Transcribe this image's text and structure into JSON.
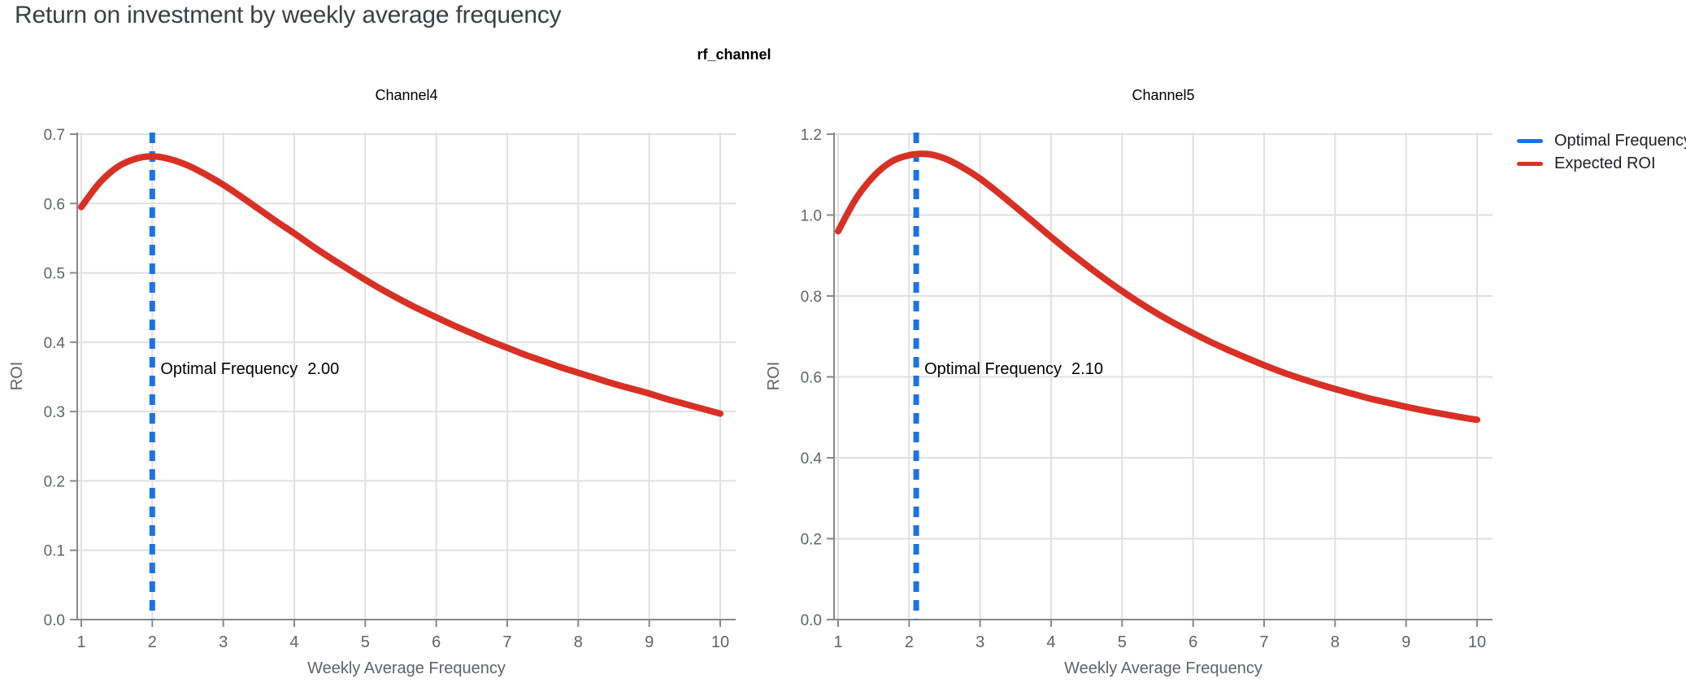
{
  "header": {
    "title": "Return on investment by weekly average frequency",
    "facet_title": "rf_channel"
  },
  "legend": {
    "items": [
      {
        "label": "Optimal Frequency",
        "color": "#1a73e8"
      },
      {
        "label": "Expected ROI",
        "color": "#d93025"
      }
    ]
  },
  "colors": {
    "expected_roi": "#d93025",
    "optimal_frequency": "#1a73e8",
    "grid": "#e0e0e0",
    "axis": "#888888",
    "tick_label": "#5f6368",
    "annotation": "#000000",
    "title": "#3c4043"
  },
  "chart_data": [
    {
      "type": "line",
      "title": "Channel4",
      "xlabel": "Weekly Average Frequency",
      "ylabel": "ROI",
      "xlim": [
        1,
        10
      ],
      "ylim": [
        0,
        0.7
      ],
      "x_ticks": [
        1,
        2,
        3,
        4,
        5,
        6,
        7,
        8,
        9,
        10
      ],
      "y_ticks": [
        0.0,
        0.1,
        0.2,
        0.3,
        0.4,
        0.5,
        0.6,
        0.7
      ],
      "grid": true,
      "legend_position": "right",
      "optimal_frequency": {
        "label": "Optimal Frequency",
        "value": 2.0,
        "value_text": "2.00"
      },
      "series": [
        {
          "name": "Expected ROI",
          "x": [
            1,
            1.25,
            1.5,
            1.75,
            2,
            2.25,
            2.5,
            2.75,
            3,
            3.25,
            3.5,
            3.75,
            4,
            4.25,
            4.5,
            4.75,
            5,
            5.25,
            5.5,
            5.75,
            6,
            6.25,
            6.5,
            6.75,
            7,
            7.25,
            7.5,
            7.75,
            8,
            8.25,
            8.5,
            8.75,
            9,
            9.25,
            9.5,
            9.75,
            10
          ],
          "y": [
            0.595,
            0.629,
            0.652,
            0.664,
            0.668,
            0.664,
            0.655,
            0.642,
            0.627,
            0.61,
            0.592,
            0.574,
            0.557,
            0.539,
            0.522,
            0.506,
            0.49,
            0.475,
            0.461,
            0.448,
            0.436,
            0.424,
            0.413,
            0.402,
            0.392,
            0.382,
            0.373,
            0.364,
            0.356,
            0.348,
            0.34,
            0.333,
            0.326,
            0.318,
            0.311,
            0.304,
            0.297
          ]
        }
      ]
    },
    {
      "type": "line",
      "title": "Channel5",
      "xlabel": "Weekly Average Frequency",
      "ylabel": "ROI",
      "xlim": [
        1,
        10
      ],
      "ylim": [
        0,
        1.2
      ],
      "x_ticks": [
        1,
        2,
        3,
        4,
        5,
        6,
        7,
        8,
        9,
        10
      ],
      "y_ticks": [
        0.0,
        0.2,
        0.4,
        0.6,
        0.8,
        1.0,
        1.2
      ],
      "grid": true,
      "legend_position": "right",
      "optimal_frequency": {
        "label": "Optimal Frequency",
        "value": 2.1,
        "value_text": "2.10"
      },
      "series": [
        {
          "name": "Expected ROI",
          "x": [
            1,
            1.25,
            1.5,
            1.75,
            2,
            2.25,
            2.5,
            2.75,
            3,
            3.25,
            3.5,
            3.75,
            4,
            4.25,
            4.5,
            4.75,
            5,
            5.25,
            5.5,
            5.75,
            6,
            6.25,
            6.5,
            6.75,
            7,
            7.25,
            7.5,
            7.75,
            8,
            8.25,
            8.5,
            8.75,
            9,
            9.25,
            9.5,
            9.75,
            10
          ],
          "y": [
            0.96,
            1.04,
            1.096,
            1.132,
            1.148,
            1.151,
            1.14,
            1.118,
            1.09,
            1.056,
            1.02,
            0.983,
            0.946,
            0.91,
            0.876,
            0.843,
            0.812,
            0.783,
            0.756,
            0.731,
            0.708,
            0.686,
            0.666,
            0.647,
            0.629,
            0.612,
            0.597,
            0.583,
            0.57,
            0.558,
            0.546,
            0.536,
            0.526,
            0.517,
            0.509,
            0.501,
            0.494
          ]
        }
      ]
    }
  ]
}
